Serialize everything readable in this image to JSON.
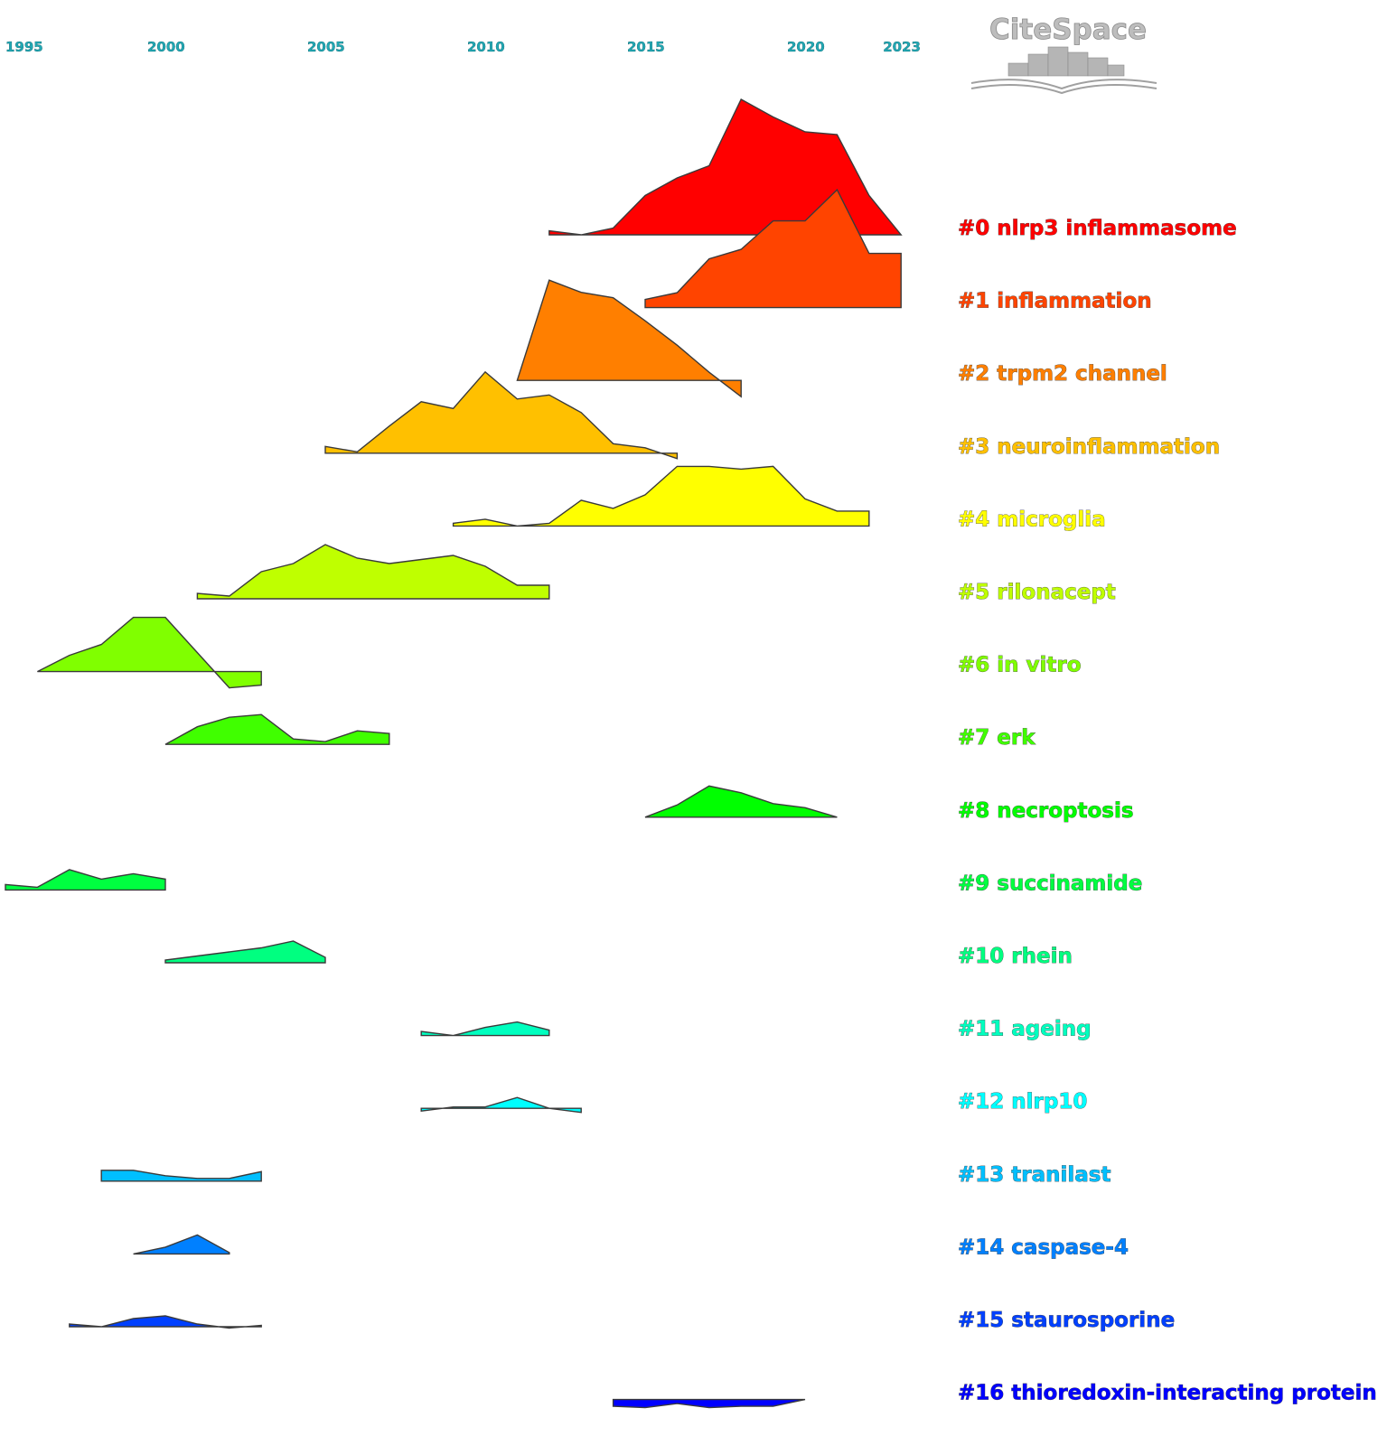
{
  "logo": {
    "text": "CiteSpace"
  },
  "chart_data": {
    "type": "area",
    "title": "",
    "xlabel": "",
    "ylabel": "",
    "xlim": [
      1995,
      2023
    ],
    "x_ticks": [
      "1995",
      "2000",
      "2005",
      "2010",
      "2015",
      "2020",
      "2023"
    ],
    "series": [
      {
        "name": "#0 nlrp3 inflammasome",
        "color": "#ff0000",
        "x": [
          2012,
          2013,
          2014,
          2015,
          2016,
          2017,
          2018,
          2019,
          2020,
          2021,
          2022,
          2023
        ],
        "values": [
          0.03,
          0.0,
          0.05,
          0.29,
          0.42,
          0.51,
          1.0,
          0.87,
          0.76,
          0.74,
          0.29,
          0.0
        ]
      },
      {
        "name": "#1 inflammation",
        "color": "#ff4400",
        "x": [
          2015,
          2016,
          2017,
          2018,
          2019,
          2020,
          2021,
          2022,
          2023
        ],
        "values": [
          0.06,
          0.11,
          0.36,
          0.43,
          0.64,
          0.64,
          0.87,
          0.4,
          0.4
        ]
      },
      {
        "name": "#2 trpm2 channel",
        "color": "#ff7f00",
        "x": [
          2011,
          2012,
          2013,
          2014,
          2015,
          2016,
          2017,
          2018
        ],
        "values": [
          0.0,
          0.74,
          0.65,
          0.61,
          0.44,
          0.26,
          0.06,
          -0.12
        ]
      },
      {
        "name": "#3 neuroinflammation",
        "color": "#ffc000",
        "x": [
          2005,
          2006,
          2007,
          2008,
          2009,
          2010,
          2011,
          2012,
          2013,
          2014,
          2015,
          2016
        ],
        "values": [
          0.05,
          0.01,
          0.2,
          0.38,
          0.33,
          0.6,
          0.4,
          0.43,
          0.3,
          0.07,
          0.04,
          -0.04
        ]
      },
      {
        "name": "#4 microglia",
        "color": "#ffff00",
        "x": [
          2009,
          2010,
          2011,
          2012,
          2013,
          2014,
          2015,
          2016,
          2017,
          2018,
          2019,
          2020,
          2021,
          2022
        ],
        "values": [
          0.02,
          0.05,
          0.0,
          0.02,
          0.19,
          0.13,
          0.23,
          0.44,
          0.44,
          0.42,
          0.44,
          0.2,
          0.11,
          0.11
        ]
      },
      {
        "name": "#5 rilonacept",
        "color": "#bfff00",
        "x": [
          2001,
          2002,
          2003,
          2004,
          2005,
          2006,
          2007,
          2008,
          2009,
          2010,
          2011,
          2012
        ],
        "values": [
          0.04,
          0.02,
          0.2,
          0.26,
          0.4,
          0.3,
          0.26,
          0.29,
          0.32,
          0.24,
          0.1,
          0.1
        ]
      },
      {
        "name": "#6 in vitro",
        "color": "#80ff00",
        "x": [
          1996,
          1997,
          1998,
          1999,
          2000,
          2001,
          2002,
          2003
        ],
        "values": [
          0.0,
          0.12,
          0.2,
          0.4,
          0.4,
          0.14,
          -0.12,
          -0.1
        ]
      },
      {
        "name": "#7 erk",
        "color": "#40ff00",
        "x": [
          2000,
          2001,
          2002,
          2003,
          2004,
          2005,
          2006,
          2007
        ],
        "values": [
          0.0,
          0.13,
          0.2,
          0.22,
          0.04,
          0.02,
          0.1,
          0.08
        ]
      },
      {
        "name": "#8 necroptosis",
        "color": "#00ff00",
        "x": [
          2015,
          2016,
          2017,
          2018,
          2019,
          2020,
          2021
        ],
        "values": [
          0.0,
          0.09,
          0.23,
          0.18,
          0.1,
          0.07,
          0.0
        ]
      },
      {
        "name": "#9 succinamide",
        "color": "#00ff40",
        "x": [
          1995,
          1996,
          1997,
          1998,
          1999,
          2000
        ],
        "values": [
          0.04,
          0.02,
          0.15,
          0.08,
          0.12,
          0.08
        ]
      },
      {
        "name": "#10 rhein",
        "color": "#00ff80",
        "x": [
          2000,
          2001,
          2002,
          2003,
          2004,
          2005
        ],
        "values": [
          0.02,
          0.05,
          0.08,
          0.11,
          0.16,
          0.04
        ]
      },
      {
        "name": "#11 ageing",
        "color": "#00ffbf",
        "x": [
          2008,
          2009,
          2010,
          2011,
          2012
        ],
        "values": [
          0.03,
          0.0,
          0.06,
          0.1,
          0.04
        ]
      },
      {
        "name": "#12 nlrp10",
        "color": "#00ffff",
        "x": [
          2008,
          2009,
          2010,
          2011,
          2012,
          2013
        ],
        "values": [
          -0.02,
          0.01,
          0.01,
          0.08,
          0.0,
          -0.03
        ]
      },
      {
        "name": "#13 tranilast",
        "color": "#00bfff",
        "x": [
          1998,
          1999,
          2000,
          2001,
          2002,
          2003
        ],
        "values": [
          0.08,
          0.08,
          0.04,
          0.02,
          0.02,
          0.07
        ]
      },
      {
        "name": "#14 caspase-4",
        "color": "#0080ff",
        "x": [
          1999,
          2000,
          2001,
          2002
        ],
        "values": [
          0.0,
          0.05,
          0.14,
          0.01
        ]
      },
      {
        "name": "#15 staurosporine",
        "color": "#0040ff",
        "x": [
          1997,
          1998,
          1999,
          2000,
          2001,
          2002,
          2003
        ],
        "values": [
          0.02,
          0.0,
          0.06,
          0.08,
          0.02,
          -0.01,
          0.01
        ]
      },
      {
        "name": "#16 thioredoxin-interacting protein",
        "color": "#0000ff",
        "x": [
          2014,
          2015,
          2016,
          2017,
          2018,
          2019,
          2020
        ],
        "values": [
          -0.05,
          -0.06,
          -0.03,
          -0.06,
          -0.05,
          -0.05,
          0.0
        ]
      }
    ]
  }
}
